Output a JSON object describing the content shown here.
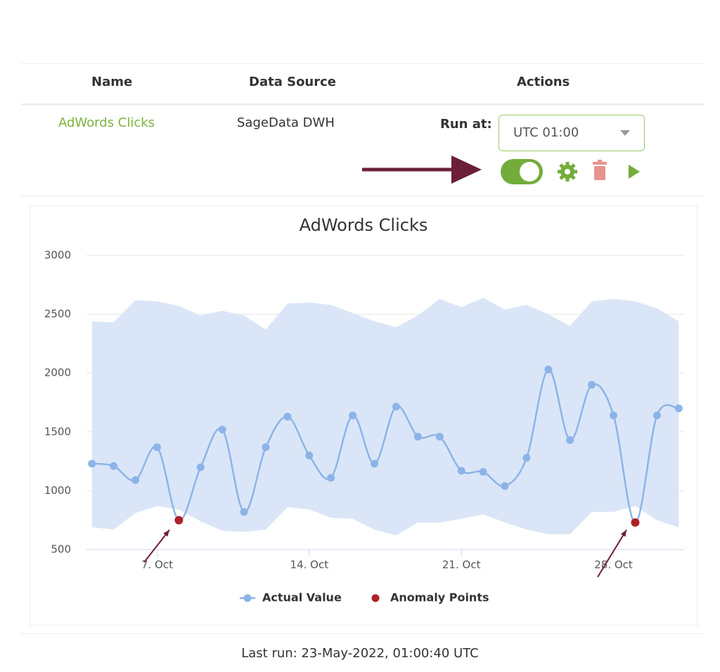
{
  "table": {
    "headers": [
      "Name",
      "Data Source",
      "Actions"
    ],
    "row": {
      "name": "AdWords Clicks",
      "source": "SageData DWH",
      "run_at_label": "Run at:",
      "run_at_value": "UTC 01:00"
    }
  },
  "last_run": "Last run: 23-May-2022, 01:00:40 UTC",
  "chart_data": {
    "type": "line",
    "title": "AdWords Clicks",
    "x": [
      4,
      5,
      6,
      7,
      8,
      9,
      10,
      11,
      12,
      13,
      14,
      15,
      16,
      17,
      18,
      19,
      20,
      21,
      22,
      23,
      24,
      25,
      26,
      27,
      28,
      29,
      30,
      31
    ],
    "series": [
      {
        "name": "Actual Value",
        "color": "#8cb4e8",
        "values": [
          1230,
          1210,
          1090,
          1370,
          750,
          1200,
          1520,
          820,
          1370,
          1630,
          1300,
          1110,
          1640,
          1230,
          1715,
          1460,
          1460,
          1170,
          1160,
          1040,
          1280,
          2030,
          1430,
          1900,
          1640,
          730,
          1640,
          1700
        ]
      },
      {
        "name": "Anomaly Points",
        "color": "#b0202a",
        "values": [
          null,
          null,
          null,
          null,
          750,
          null,
          null,
          null,
          null,
          null,
          null,
          null,
          null,
          null,
          null,
          null,
          null,
          null,
          null,
          null,
          null,
          null,
          null,
          null,
          null,
          730,
          null,
          null
        ]
      }
    ],
    "range": {
      "color": "#dae6f7",
      "upper": [
        2440,
        2430,
        2620,
        2610,
        2570,
        2490,
        2530,
        2490,
        2370,
        2590,
        2600,
        2580,
        2510,
        2440,
        2390,
        2490,
        2630,
        2560,
        2640,
        2540,
        2580,
        2500,
        2400,
        2610,
        2630,
        2610,
        2550,
        2440
      ],
      "lower": [
        690,
        670,
        810,
        870,
        840,
        740,
        660,
        650,
        670,
        860,
        840,
        770,
        760,
        670,
        620,
        730,
        730,
        760,
        800,
        730,
        670,
        630,
        630,
        820,
        820,
        870,
        750,
        690
      ]
    },
    "xlim": [
      3.75,
      31.25
    ],
    "xticks": [
      {
        "value": 7,
        "label": "7. Oct"
      },
      {
        "value": 14,
        "label": "14. Oct"
      },
      {
        "value": 21,
        "label": "21. Oct"
      },
      {
        "value": 28,
        "label": "28. Oct"
      }
    ],
    "ylim": [
      500,
      3000
    ],
    "yticks": [
      500,
      1000,
      1500,
      2000,
      2500,
      3000
    ],
    "grid": true
  }
}
